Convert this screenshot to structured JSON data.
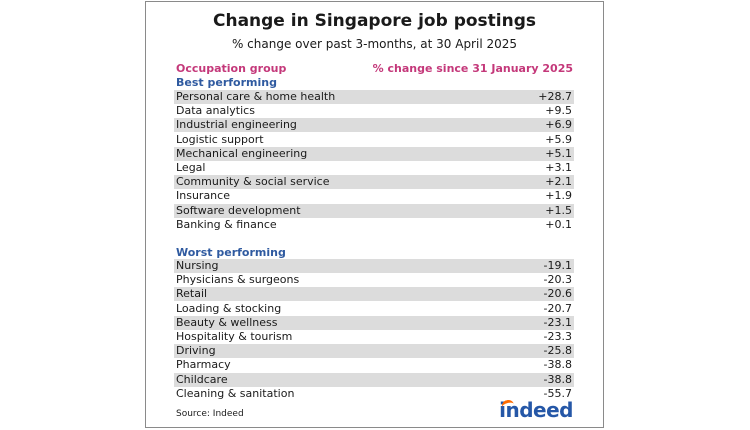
{
  "chart_data": {
    "type": "table",
    "title": "Change in Singapore job postings",
    "subtitle": "% change over past 3-months, at 30 April 2025",
    "column_headers": [
      "Occupation group",
      "% change since 31 January 2025"
    ],
    "groups": [
      {
        "name": "Best performing",
        "rows": [
          {
            "label": "Personal care & home health",
            "value": "+28.7"
          },
          {
            "label": "Data analytics",
            "value": "+9.5"
          },
          {
            "label": "Industrial engineering",
            "value": "+6.9"
          },
          {
            "label": "Logistic support",
            "value": "+5.9"
          },
          {
            "label": "Mechanical engineering",
            "value": "+5.1"
          },
          {
            "label": "Legal",
            "value": "+3.1"
          },
          {
            "label": "Community & social service",
            "value": "+2.1"
          },
          {
            "label": "Insurance",
            "value": "+1.9"
          },
          {
            "label": "Software development",
            "value": "+1.5"
          },
          {
            "label": "Banking & finance",
            "value": "+0.1"
          }
        ]
      },
      {
        "name": "Worst performing",
        "rows": [
          {
            "label": "Nursing",
            "value": "-19.1"
          },
          {
            "label": "Physicians & surgeons",
            "value": "-20.3"
          },
          {
            "label": "Retail",
            "value": "-20.6"
          },
          {
            "label": "Loading & stocking",
            "value": "-20.7"
          },
          {
            "label": "Beauty & wellness",
            "value": "-23.1"
          },
          {
            "label": "Hospitality & tourism",
            "value": "-23.3"
          },
          {
            "label": "Driving",
            "value": "-25.8"
          },
          {
            "label": "Pharmacy",
            "value": "-38.8"
          },
          {
            "label": "Childcare",
            "value": "-38.8"
          },
          {
            "label": "Cleaning & sanitation",
            "value": "-55.7"
          }
        ]
      }
    ],
    "source": "Source: Indeed"
  },
  "logo": {
    "text": "indeed",
    "colors": {
      "text": "#2557a7",
      "arc": "#ff6b00"
    }
  },
  "colors": {
    "header": "#c4387a",
    "section": "#2f5aa0",
    "shade": "#dcdcdc"
  }
}
